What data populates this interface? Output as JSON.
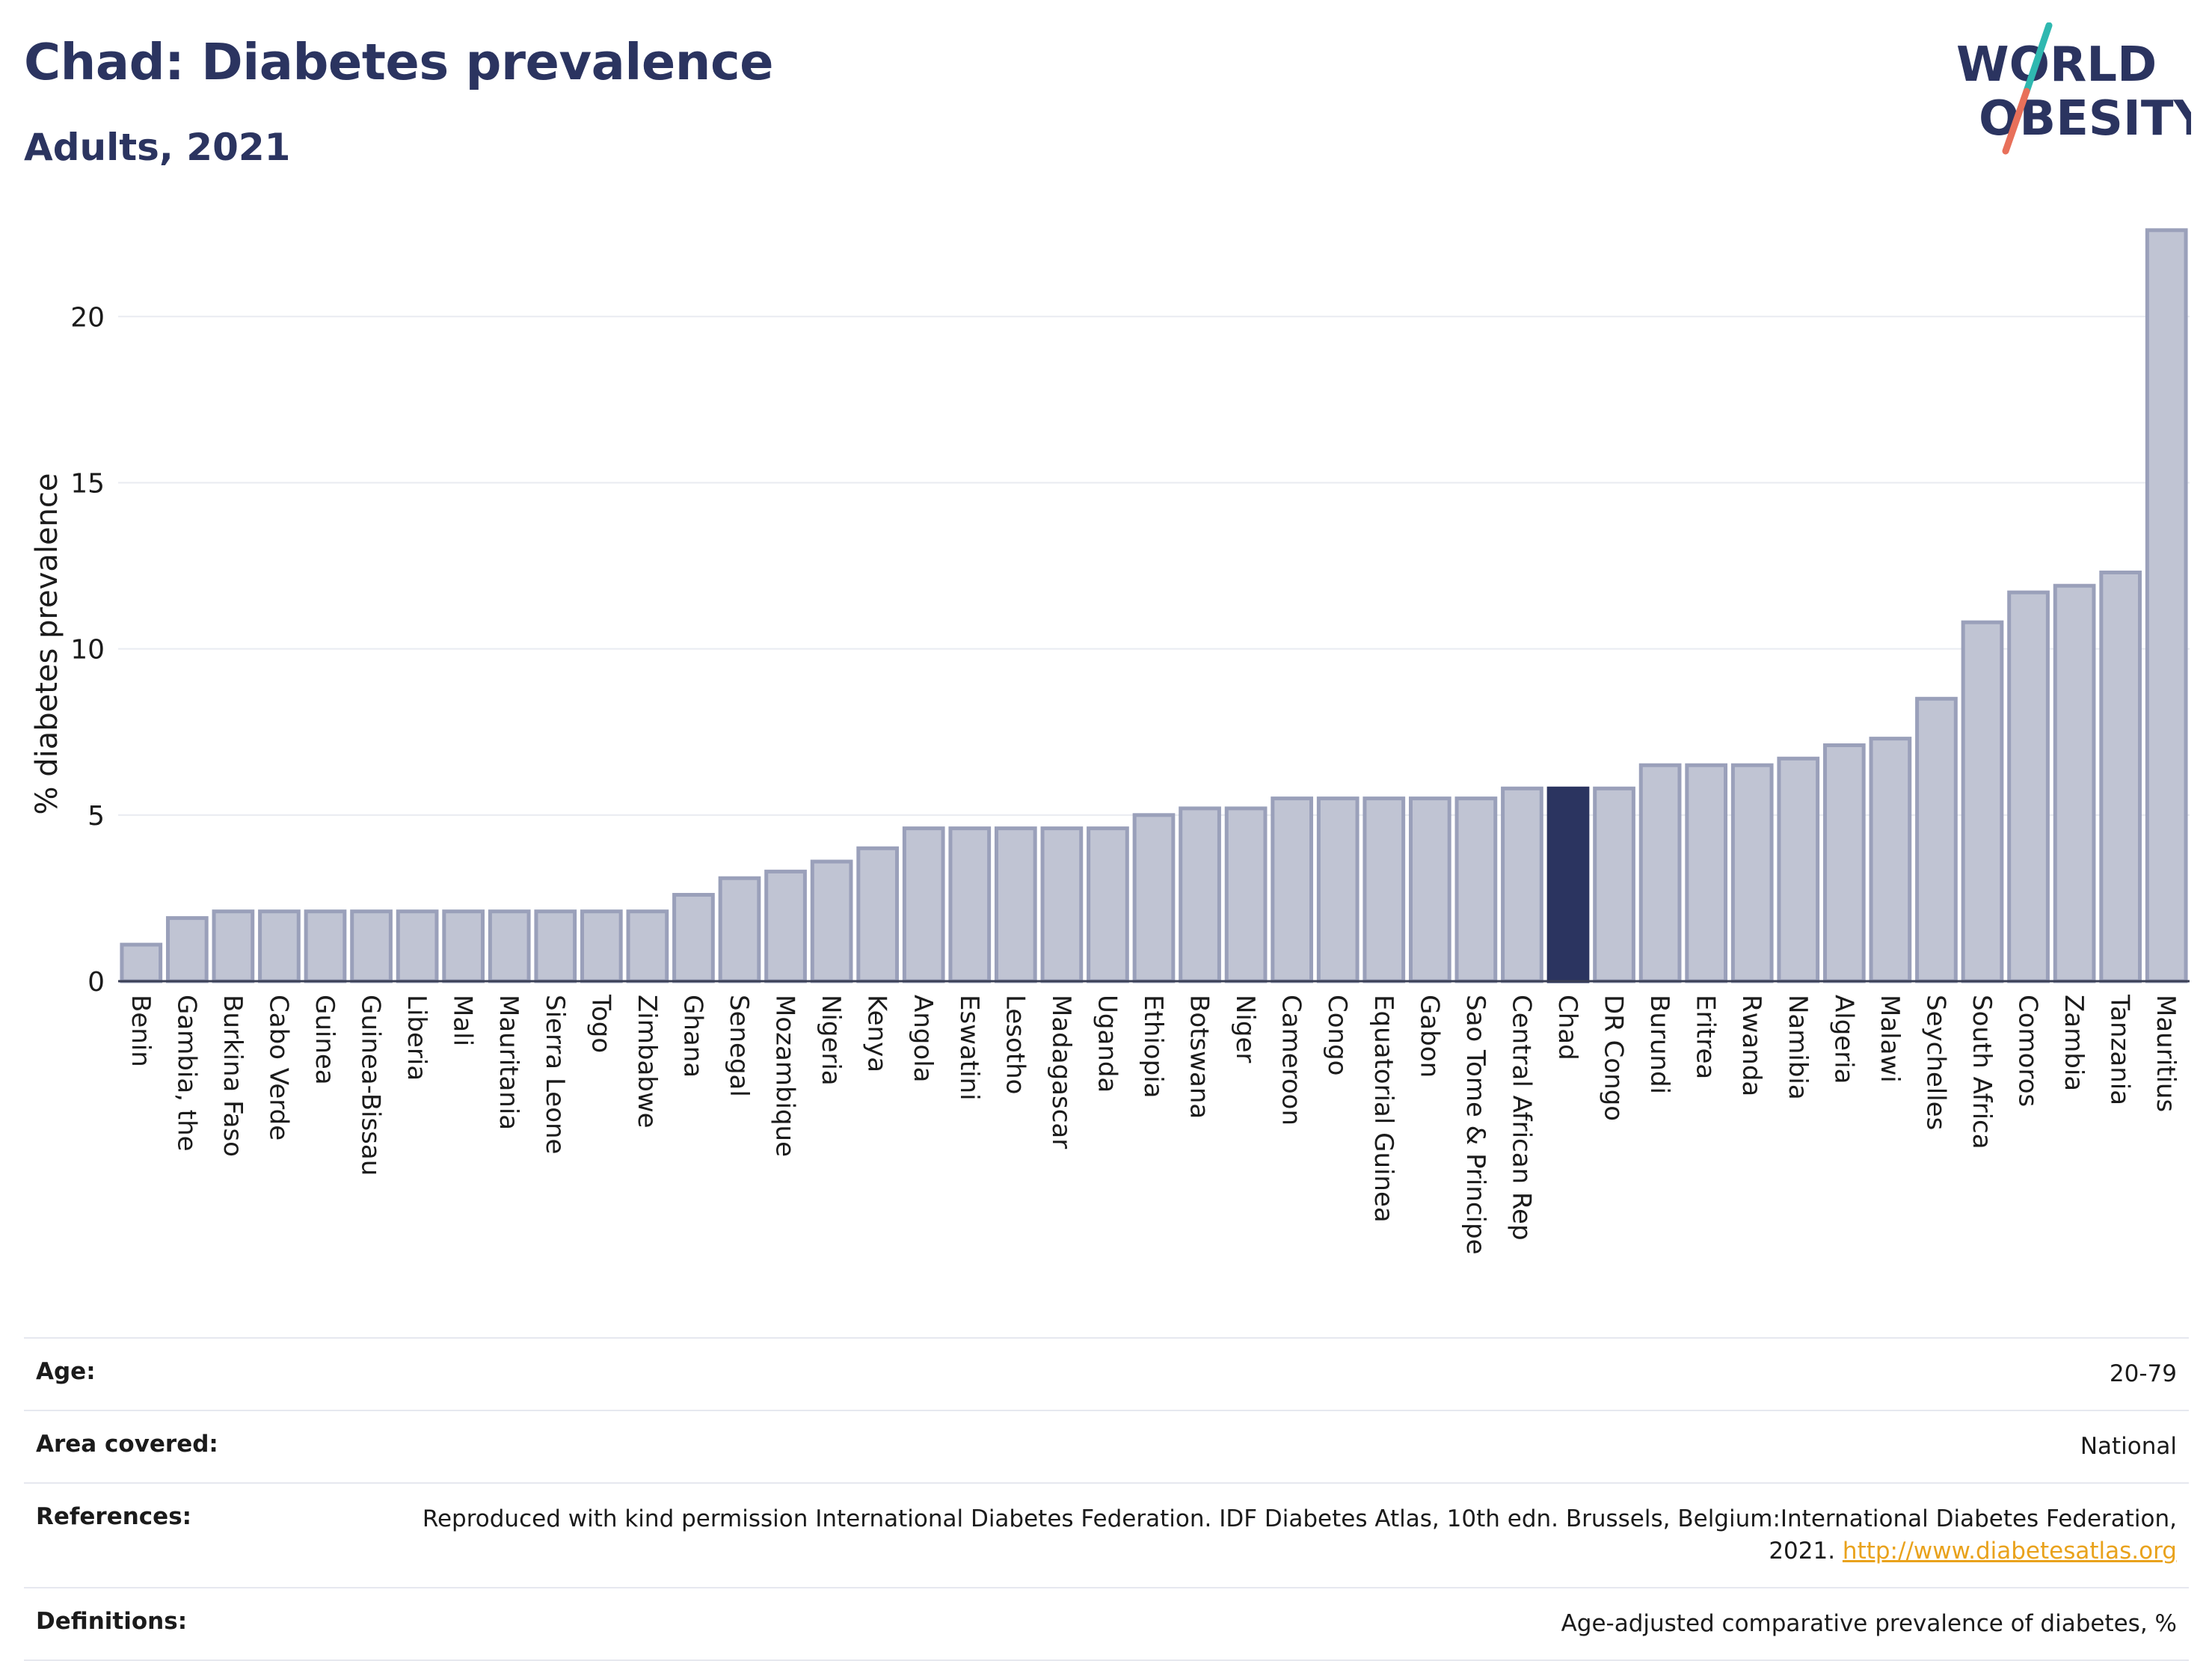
{
  "header": {
    "title": "Chad: Diabetes prevalence",
    "subtitle": "Adults, 2021"
  },
  "logo": {
    "line1": "WORLD",
    "line2": "OBESITY"
  },
  "colors": {
    "bar_fill": "#c0c4d3",
    "bar_stroke": "#9aa0ba",
    "highlight": "#2b3460",
    "grid": "#e9ebf1",
    "text": "#2b3460",
    "link": "#e9a21c",
    "logo_slash_top": "#2fb8b0",
    "logo_slash_bottom": "#e8705a"
  },
  "chart_data": {
    "type": "bar",
    "title": "Chad: Diabetes prevalence",
    "subtitle": "Adults, 2021",
    "xlabel": "",
    "ylabel": "% diabetes prevalence",
    "ylim": [
      0,
      23
    ],
    "yticks": [
      0,
      5,
      10,
      15,
      20
    ],
    "grid": true,
    "highlight": "Chad",
    "categories": [
      "Benin",
      "Gambia, the",
      "Burkina Faso",
      "Cabo Verde",
      "Guinea",
      "Guinea-Bissau",
      "Liberia",
      "Mali",
      "Mauritania",
      "Sierra Leone",
      "Togo",
      "Zimbabwe",
      "Ghana",
      "Senegal",
      "Mozambique",
      "Nigeria",
      "Kenya",
      "Angola",
      "Eswatini",
      "Lesotho",
      "Madagascar",
      "Uganda",
      "Ethiopia",
      "Botswana",
      "Niger",
      "Cameroon",
      "Congo",
      "Equatorial Guinea",
      "Gabon",
      "Sao Tome & Principe",
      "Central African Rep",
      "Chad",
      "DR Congo",
      "Burundi",
      "Eritrea",
      "Rwanda",
      "Namibia",
      "Algeria",
      "Malawi",
      "Seychelles",
      "South Africa",
      "Comoros",
      "Zambia",
      "Tanzania",
      "Mauritius"
    ],
    "values": [
      1.1,
      1.9,
      2.1,
      2.1,
      2.1,
      2.1,
      2.1,
      2.1,
      2.1,
      2.1,
      2.1,
      2.1,
      2.6,
      3.1,
      3.3,
      3.6,
      4.0,
      4.6,
      4.6,
      4.6,
      4.6,
      4.6,
      5.0,
      5.2,
      5.2,
      5.5,
      5.5,
      5.5,
      5.5,
      5.5,
      5.8,
      5.8,
      5.8,
      6.5,
      6.5,
      6.5,
      6.7,
      7.1,
      7.3,
      8.5,
      10.8,
      11.7,
      11.9,
      12.3,
      22.6
    ]
  },
  "info": [
    {
      "key": "Age:",
      "value": "20-79"
    },
    {
      "key": "Area covered:",
      "value": "National"
    },
    {
      "key": "References:",
      "value": "Reproduced with kind permission International Diabetes Federation.  IDF Diabetes Atlas, 10th edn. Brussels, Belgium:International Diabetes Federation, 2021.",
      "link": "http://www.diabetesatlas.org"
    },
    {
      "key": "Definitions:",
      "value": "Age-adjusted comparative prevalence of diabetes, %"
    }
  ]
}
